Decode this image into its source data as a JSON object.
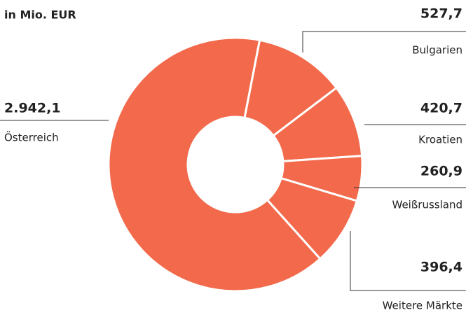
{
  "chart_data": {
    "type": "pie",
    "title": "in Mio. EUR",
    "categories": [
      "Bulgarien",
      "Kroatien",
      "Weißrussland",
      "Weitere Märkte",
      "Österreich"
    ],
    "values": [
      527.7,
      420.7,
      260.9,
      396.4,
      2942.1
    ],
    "value_labels": [
      "527,7",
      "420,7",
      "260,9",
      "396,4",
      "2.942,1"
    ],
    "color": "#f26a4b"
  }
}
